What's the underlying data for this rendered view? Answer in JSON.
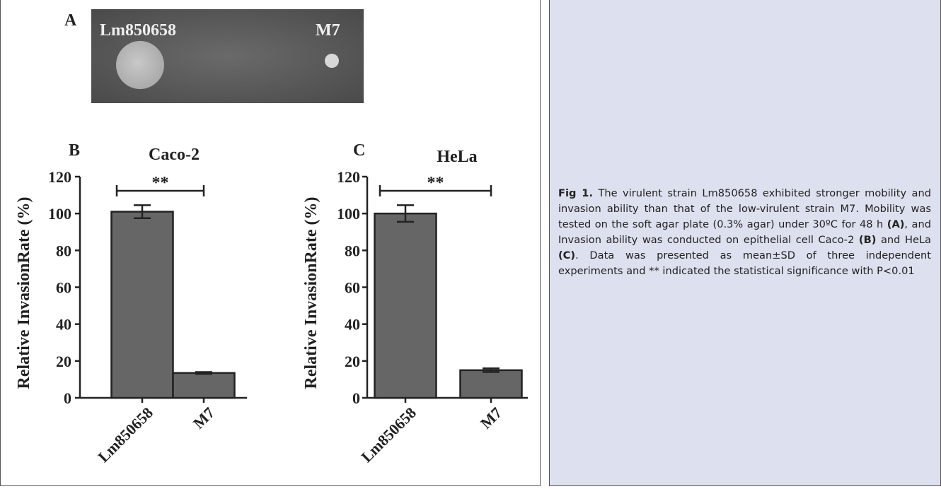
{
  "panel_a": {
    "label": "A",
    "strain_left": "Lm850658",
    "strain_right": "M7"
  },
  "chart_data": [
    {
      "type": "bar",
      "panel_label": "B",
      "title": "Caco-2",
      "y_label": "Relative InvasionRate (%)",
      "categories": [
        "Lm850658",
        "M7"
      ],
      "values": [
        101,
        13.5
      ],
      "errors": [
        3.5,
        0.5
      ],
      "color": "#666666",
      "ylim": [
        0,
        120
      ],
      "yticks": [
        0,
        20,
        40,
        60,
        80,
        100,
        120
      ],
      "annotation": "**"
    },
    {
      "type": "bar",
      "panel_label": "C",
      "title": "HeLa",
      "y_label": "Relative InvasionRate (%)",
      "categories": [
        "Lm850658",
        "M7"
      ],
      "values": [
        100,
        15
      ],
      "errors": [
        4.5,
        1
      ],
      "color": "#666666",
      "ylim": [
        0,
        120
      ],
      "yticks": [
        0,
        20,
        40,
        60,
        80,
        100,
        120
      ],
      "annotation": "**"
    }
  ],
  "caption": {
    "label": "Fig 1.",
    "parts": [
      {
        "text": " The virulent strain Lm850658 exhibited stronger mobility and invasion ability than that of the low-virulent strain M7. Mobility was tested on the soft agar plate (0.3% agar) under 30ºC for 48 h ",
        "bold": false
      },
      {
        "text": "(A)",
        "bold": true
      },
      {
        "text": ", and Invasion ability was conducted on epithelial cell Caco-2 ",
        "bold": false
      },
      {
        "text": "(B)",
        "bold": true
      },
      {
        "text": " and HeLa ",
        "bold": false
      },
      {
        "text": "(C)",
        "bold": true
      },
      {
        "text": ". Data was presented as mean±SD of three independent experiments and ** indicated the statistical significance with P<0.01",
        "bold": false
      }
    ]
  }
}
